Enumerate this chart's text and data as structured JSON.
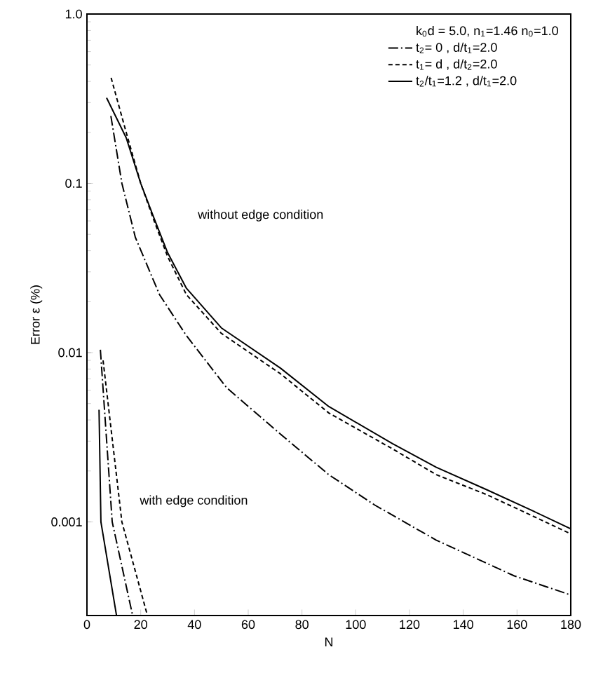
{
  "chart_data": {
    "type": "line",
    "xlabel": "N",
    "ylabel": "Error ε   (%)",
    "legend_title": "k$_{0}$d = 5.0, n$_{1}$=1.46 n$_{0}$=1.0",
    "log": "y",
    "xlim": [
      0,
      180
    ],
    "ylim": [
      0.00028,
      1.0
    ],
    "xticks": [
      0,
      20,
      40,
      60,
      80,
      100,
      120,
      140,
      160,
      180
    ],
    "yticks": [
      {
        "value": 0.001,
        "label": "0.001"
      },
      {
        "value": 0.01,
        "label": "0.01"
      },
      {
        "value": 0.1,
        "label": "0.1"
      },
      {
        "value": 1.0,
        "label": "1.0"
      }
    ],
    "grid": false,
    "legend": "top right",
    "marker": "none",
    "series": [
      {
        "name": "t$_{2}$= 0 , d/t$_{1}$=2.0",
        "color": "#000000",
        "line_style": "dashdot",
        "x": [
          8.9,
          13,
          18,
          27,
          37,
          52,
          72,
          90,
          107,
          130,
          159,
          180
        ],
        "values": [
          0.25,
          0.1,
          0.048,
          0.022,
          0.0126,
          0.0062,
          0.0033,
          0.0019,
          0.00126,
          0.00078,
          0.00048,
          0.00037
        ]
      },
      {
        "name": "t$_{1}$= d , d/t$_{2}$=2.0",
        "color": "#000000",
        "line_style": "dashed",
        "x": [
          9,
          14.6,
          20,
          25,
          30,
          37,
          50,
          72,
          90,
          113.7,
          130,
          148.7,
          165,
          180
        ],
        "values": [
          0.42,
          0.2,
          0.1,
          0.06,
          0.037,
          0.022,
          0.013,
          0.0075,
          0.0044,
          0.0027,
          0.0019,
          0.00145,
          0.0011,
          0.00085
        ]
      },
      {
        "name": "t$_{2}$/t$_{1}$=1.2 , d/t$_{1}$=2.0",
        "color": "#000000",
        "line_style": "solid",
        "x": [
          7.3,
          14.6,
          20,
          25,
          30,
          37,
          50,
          72,
          90,
          113.7,
          130,
          148.7,
          165,
          180
        ],
        "values": [
          0.32,
          0.186,
          0.1,
          0.062,
          0.039,
          0.024,
          0.014,
          0.0081,
          0.0048,
          0.0029,
          0.0021,
          0.00155,
          0.00118,
          0.00091
        ]
      },
      {
        "color": "#000000",
        "line_style": "dashdot",
        "x": [
          5,
          9.4,
          17
        ],
        "values": [
          0.0104,
          0.001,
          0.00028
        ]
      },
      {
        "color": "#000000",
        "line_style": "dashed",
        "x": [
          6,
          13,
          22.5
        ],
        "values": [
          0.009,
          0.001,
          0.00028
        ]
      },
      {
        "color": "#000000",
        "line_style": "solid",
        "x": [
          4.5,
          5.2,
          11
        ],
        "values": [
          0.0046,
          0.001,
          0.00028
        ]
      }
    ],
    "annotations": [
      "without edge condition",
      "with edge condition"
    ]
  }
}
